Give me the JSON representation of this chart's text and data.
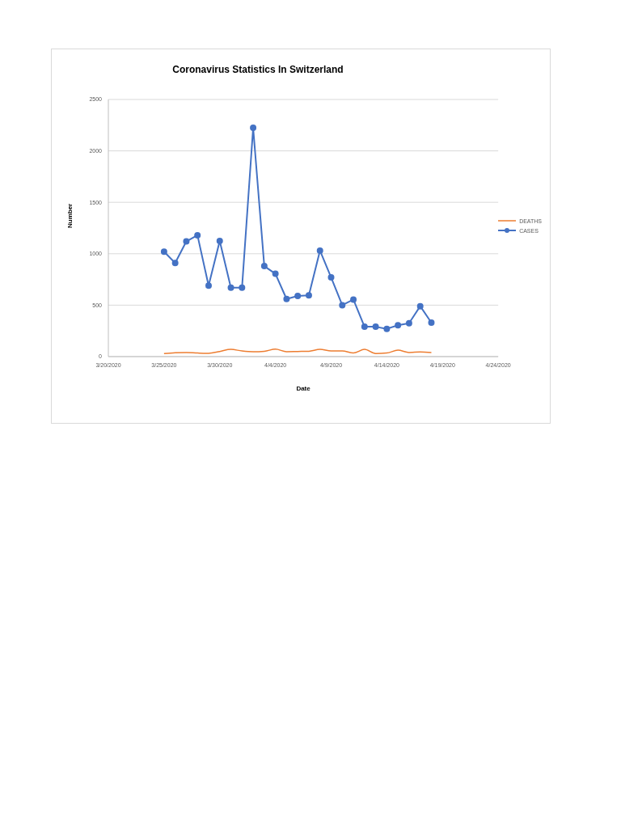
{
  "chart_data": {
    "type": "line",
    "title": "Coronavirus Statistics In Switzerland",
    "xlabel": "Date",
    "ylabel": "Number",
    "x": [
      "2020-03-25",
      "2020-03-26",
      "2020-03-27",
      "2020-03-28",
      "2020-03-29",
      "2020-03-30",
      "2020-03-31",
      "2020-04-01",
      "2020-04-02",
      "2020-04-03",
      "2020-04-04",
      "2020-04-05",
      "2020-04-06",
      "2020-04-07",
      "2020-04-08",
      "2020-04-09",
      "2020-04-10",
      "2020-04-11",
      "2020-04-12",
      "2020-04-13",
      "2020-04-14",
      "2020-04-15",
      "2020-04-16",
      "2020-04-17",
      "2020-04-18"
    ],
    "series": [
      {
        "name": "DEATHS",
        "color": "#ed7d31",
        "marker": "none",
        "values": [
          30,
          38,
          40,
          35,
          32,
          50,
          70,
          55,
          48,
          52,
          72,
          48,
          50,
          52,
          70,
          55,
          55,
          35,
          70,
          30,
          35,
          62,
          40,
          45,
          40
        ]
      },
      {
        "name": "CASES",
        "color": "#4472c4",
        "marker": "circle",
        "values": [
          1020,
          910,
          1120,
          1180,
          690,
          1125,
          670,
          670,
          2225,
          880,
          805,
          560,
          590,
          595,
          1030,
          770,
          500,
          555,
          290,
          290,
          270,
          305,
          325,
          490,
          330
        ]
      }
    ],
    "xlim": [
      "2020-03-20",
      "2020-04-24"
    ],
    "xticks": [
      {
        "value": "2020-03-20",
        "label": "3/20/2020"
      },
      {
        "value": "2020-03-25",
        "label": "3/25/2020"
      },
      {
        "value": "2020-03-30",
        "label": "3/30/2020"
      },
      {
        "value": "2020-04-04",
        "label": "4/4/2020"
      },
      {
        "value": "2020-04-09",
        "label": "4/9/2020"
      },
      {
        "value": "2020-04-14",
        "label": "4/14/2020"
      },
      {
        "value": "2020-04-19",
        "label": "4/19/2020"
      },
      {
        "value": "2020-04-24",
        "label": "4/24/2020"
      }
    ],
    "ylim": [
      0,
      2500
    ],
    "yticks": [
      0,
      500,
      1000,
      1500,
      2000,
      2500
    ],
    "grid": "y",
    "legend": "right"
  }
}
